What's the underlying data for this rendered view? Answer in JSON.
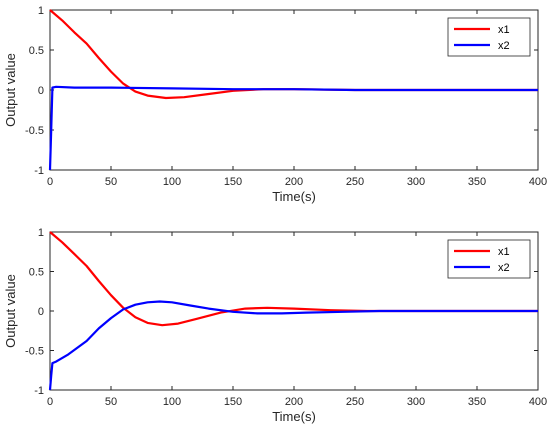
{
  "chart_data": [
    {
      "type": "line",
      "title": "",
      "xlabel": "Time(s)",
      "ylabel": "Output value",
      "xlim": [
        0,
        400
      ],
      "ylim": [
        -1,
        1
      ],
      "xticks": [
        0,
        50,
        100,
        150,
        200,
        250,
        300,
        350,
        400
      ],
      "yticks": [
        -1,
        -0.5,
        0,
        0.5,
        1
      ],
      "grid": false,
      "legend_position": "top-right",
      "series": [
        {
          "name": "x1",
          "color": "#ff0000",
          "points": [
            [
              0,
              1
            ],
            [
              10,
              0.87
            ],
            [
              20,
              0.72
            ],
            [
              30,
              0.58
            ],
            [
              40,
              0.4
            ],
            [
              50,
              0.23
            ],
            [
              60,
              0.08
            ],
            [
              70,
              -0.02
            ],
            [
              80,
              -0.07
            ],
            [
              95,
              -0.1
            ],
            [
              110,
              -0.09
            ],
            [
              130,
              -0.05
            ],
            [
              150,
              -0.01
            ],
            [
              175,
              0.01
            ],
            [
              200,
              0.01
            ],
            [
              250,
              0.0
            ],
            [
              300,
              0.0
            ],
            [
              400,
              0.0
            ]
          ]
        },
        {
          "name": "x2",
          "color": "#0000ff",
          "points": [
            [
              0,
              -1
            ],
            [
              1,
              -0.5
            ],
            [
              2,
              0.03
            ],
            [
              5,
              0.04
            ],
            [
              20,
              0.03
            ],
            [
              50,
              0.03
            ],
            [
              100,
              0.02
            ],
            [
              150,
              0.01
            ],
            [
              200,
              0.01
            ],
            [
              250,
              0.0
            ],
            [
              300,
              0.0
            ],
            [
              400,
              0.0
            ]
          ]
        }
      ]
    },
    {
      "type": "line",
      "title": "",
      "xlabel": "Time(s)",
      "ylabel": "Output value",
      "xlim": [
        0,
        400
      ],
      "ylim": [
        -1,
        1
      ],
      "xticks": [
        0,
        50,
        100,
        150,
        200,
        250,
        300,
        350,
        400
      ],
      "yticks": [
        -1,
        -0.5,
        0,
        0.5,
        1
      ],
      "grid": false,
      "legend_position": "top-right",
      "series": [
        {
          "name": "x1",
          "color": "#ff0000",
          "points": [
            [
              0,
              1
            ],
            [
              10,
              0.87
            ],
            [
              20,
              0.72
            ],
            [
              30,
              0.57
            ],
            [
              40,
              0.38
            ],
            [
              50,
              0.2
            ],
            [
              60,
              0.04
            ],
            [
              70,
              -0.08
            ],
            [
              80,
              -0.15
            ],
            [
              92,
              -0.18
            ],
            [
              105,
              -0.16
            ],
            [
              120,
              -0.1
            ],
            [
              140,
              -0.02
            ],
            [
              160,
              0.03
            ],
            [
              178,
              0.04
            ],
            [
              200,
              0.03
            ],
            [
              230,
              0.01
            ],
            [
              260,
              0.0
            ],
            [
              300,
              0.0
            ],
            [
              400,
              0.0
            ]
          ]
        },
        {
          "name": "x2",
          "color": "#0000ff",
          "points": [
            [
              0,
              -1
            ],
            [
              1,
              -0.82
            ],
            [
              2,
              -0.66
            ],
            [
              5,
              -0.64
            ],
            [
              15,
              -0.55
            ],
            [
              30,
              -0.38
            ],
            [
              40,
              -0.22
            ],
            [
              50,
              -0.09
            ],
            [
              60,
              0.02
            ],
            [
              70,
              0.08
            ],
            [
              80,
              0.11
            ],
            [
              90,
              0.12
            ],
            [
              100,
              0.11
            ],
            [
              115,
              0.07
            ],
            [
              130,
              0.03
            ],
            [
              150,
              -0.01
            ],
            [
              170,
              -0.03
            ],
            [
              190,
              -0.03
            ],
            [
              210,
              -0.02
            ],
            [
              240,
              -0.01
            ],
            [
              270,
              0.0
            ],
            [
              300,
              0.0
            ],
            [
              400,
              0.0
            ]
          ]
        }
      ]
    }
  ]
}
